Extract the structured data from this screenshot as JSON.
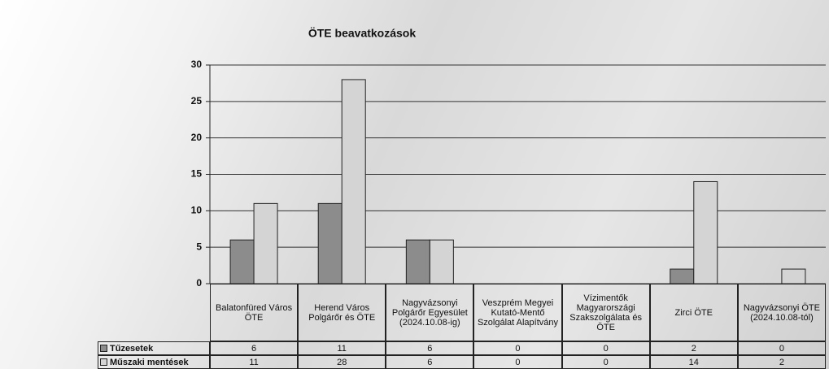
{
  "chart_data": {
    "type": "bar",
    "title": "ÖTE beavatkozások",
    "categories": [
      "Balatonfüred Város ÖTE",
      "Herend Város Polgárőr és ÖTE",
      "Nagyvázsonyi Polgárőr Egyesület (2024.10.08-ig)",
      "Veszprém Megyei Kutató-Mentő Szolgálat Alapítvány",
      "Vízimentők Magyarországi Szakszolgálata és ÖTE",
      "Zirci ÖTE",
      "Nagyvázsonyi ÖTE (2024.10.08-tól)"
    ],
    "series": [
      {
        "name": "Tűzesetek",
        "color": "#8c8c8c",
        "values": [
          6,
          11,
          6,
          0,
          0,
          2,
          0
        ]
      },
      {
        "name": "Műszaki mentések",
        "color": "#d4d4d4",
        "values": [
          11,
          28,
          6,
          0,
          0,
          14,
          2
        ]
      }
    ],
    "ylim": [
      0,
      30
    ],
    "yticks": [
      0,
      5,
      10,
      15,
      20,
      25,
      30
    ],
    "grid": true
  }
}
